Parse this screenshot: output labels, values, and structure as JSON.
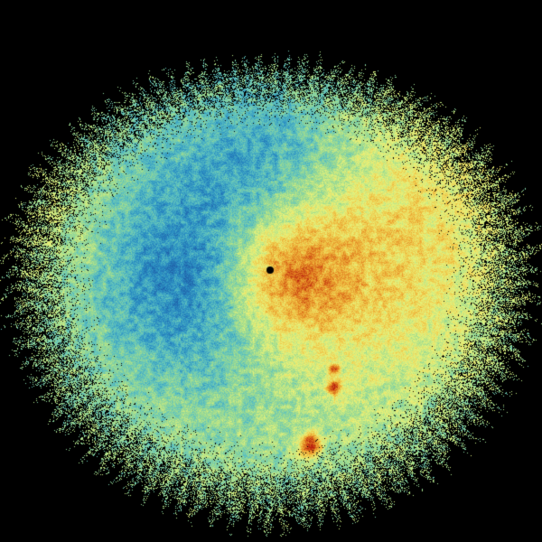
{
  "image": {
    "kind": "radar-sweep",
    "background_color": "#000000",
    "colormap": [
      "#1f5fa8",
      "#2a8fc4",
      "#5cc1c0",
      "#9fdc8f",
      "#e8f27a",
      "#f0c244",
      "#e07a1e",
      "#b8200f"
    ],
    "site_marker_color": "#000000"
  }
}
